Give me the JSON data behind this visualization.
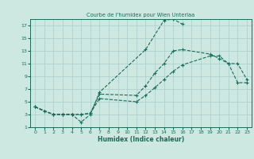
{
  "title": "Courbe de l'humidex pour Wien Unterlaa",
  "xlabel": "Humidex (Indice chaleur)",
  "background_color": "#cce8e0",
  "grid_color": "#aacccc",
  "line_color": "#1a6b5a",
  "xlim": [
    -0.5,
    23.5
  ],
  "ylim": [
    1,
    18
  ],
  "xticks": [
    0,
    1,
    2,
    3,
    4,
    5,
    6,
    7,
    8,
    9,
    10,
    11,
    12,
    13,
    14,
    15,
    16,
    17,
    18,
    19,
    20,
    21,
    22,
    23
  ],
  "yticks": [
    1,
    3,
    5,
    7,
    9,
    11,
    13,
    15,
    17
  ],
  "line1_x": [
    0,
    1,
    2,
    3,
    4,
    5,
    6,
    7,
    12,
    14,
    15,
    16
  ],
  "line1_y": [
    4.2,
    3.5,
    3.0,
    3.0,
    3.0,
    1.8,
    3.0,
    6.5,
    13.2,
    17.8,
    18.0,
    17.2
  ],
  "line2_x": [
    0,
    2,
    3,
    4,
    5,
    6,
    7,
    11,
    12,
    13,
    14,
    15,
    16,
    19,
    20,
    21,
    22,
    23
  ],
  "line2_y": [
    4.2,
    3.0,
    3.0,
    3.0,
    3.0,
    3.2,
    6.2,
    6.0,
    7.5,
    9.5,
    11.0,
    13.0,
    13.2,
    12.5,
    11.8,
    11.0,
    11.0,
    8.5
  ],
  "line3_x": [
    0,
    2,
    3,
    4,
    5,
    6,
    7,
    11,
    12,
    13,
    14,
    15,
    16,
    19,
    20,
    21,
    22,
    23
  ],
  "line3_y": [
    4.2,
    3.0,
    3.0,
    3.0,
    3.0,
    3.2,
    5.5,
    5.0,
    6.0,
    7.2,
    8.5,
    9.8,
    10.8,
    12.2,
    12.2,
    11.0,
    8.0,
    8.0
  ]
}
